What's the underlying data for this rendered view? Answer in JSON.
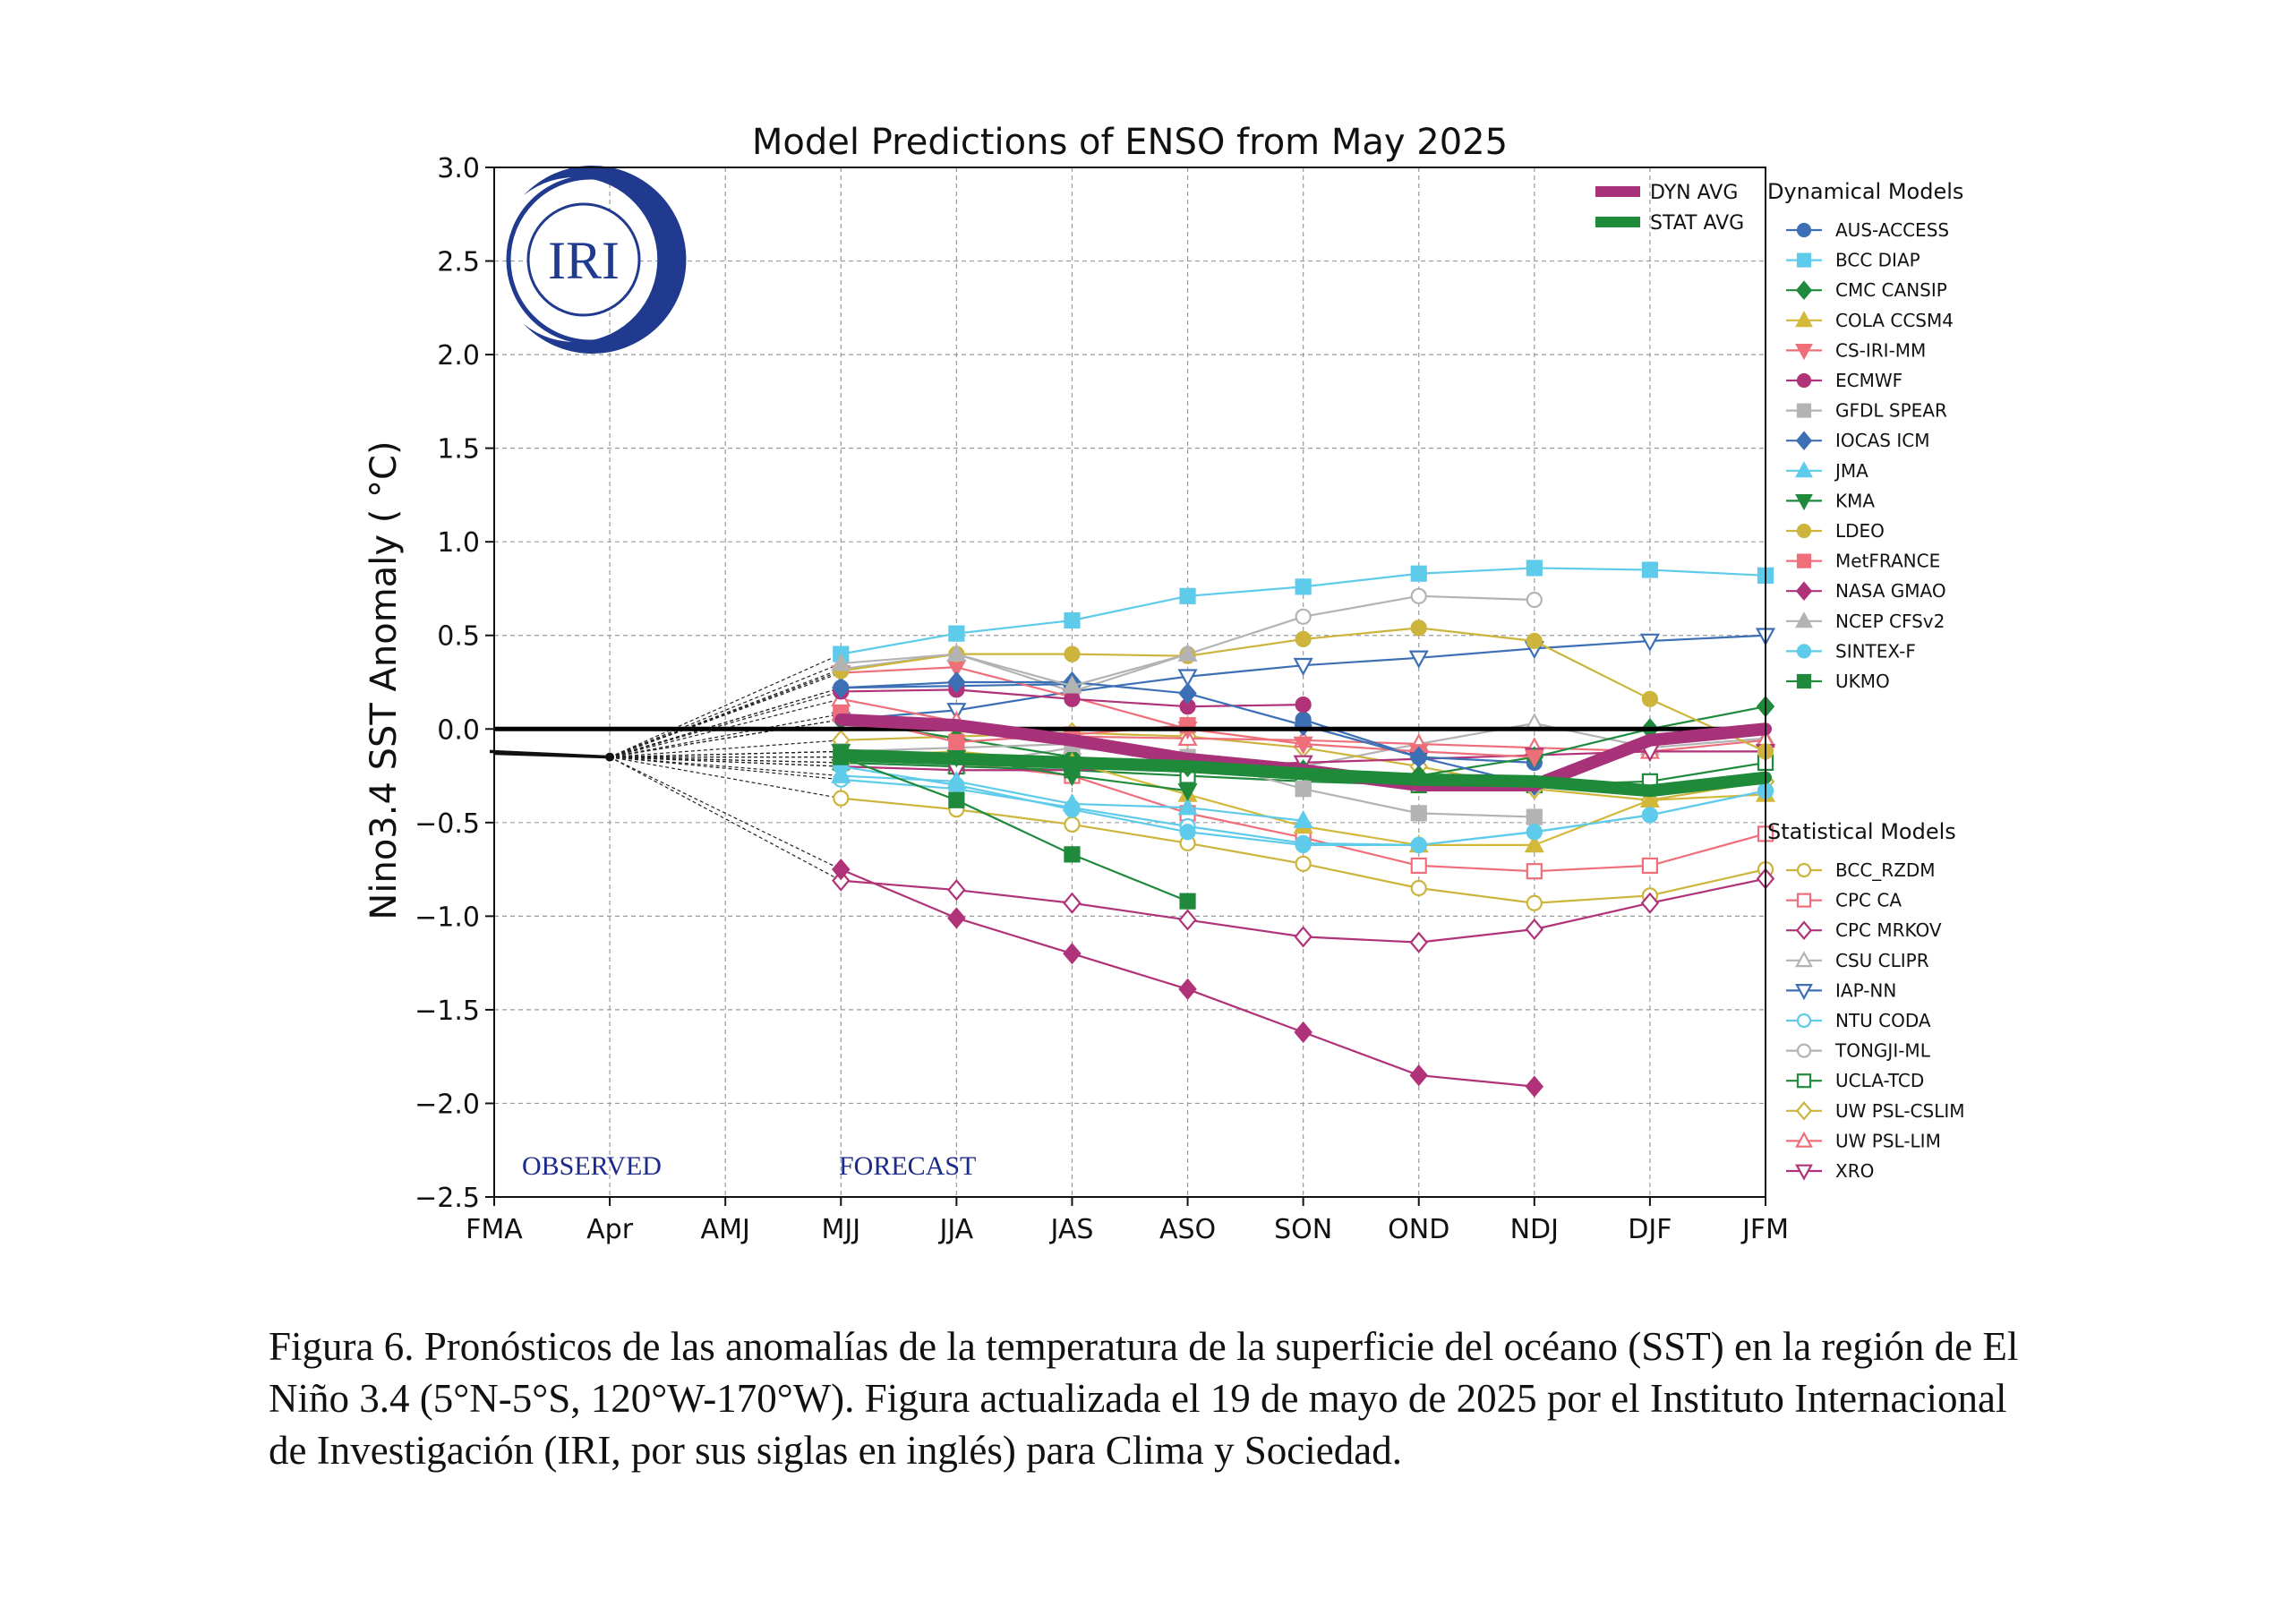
{
  "chart_data": {
    "type": "line",
    "title": "Model Predictions of ENSO from May 2025",
    "ylabel": "Nino3.4 SST Anomaly ( °C)",
    "xlabel": "",
    "categories": [
      "FMA",
      "Apr",
      "AMJ",
      "MJJ",
      "JJA",
      "JAS",
      "ASO",
      "SON",
      "OND",
      "NDJ",
      "DJF",
      "JFM"
    ],
    "ylim": [
      -2.5,
      3.0
    ],
    "yticks": [
      -2.5,
      -2.0,
      -1.5,
      -1.0,
      -0.5,
      0.0,
      0.5,
      1.0,
      1.5,
      2.0,
      2.5,
      3.0
    ],
    "ytick_labels": [
      "−2.5",
      "−2.0",
      "−1.5",
      "−1.0",
      "−0.5",
      "0.0",
      "0.5",
      "1.0",
      "1.5",
      "2.0",
      "2.5",
      "3.0"
    ],
    "grid": true,
    "legend_placement": "right, outside plot",
    "observed": {
      "x": [
        0,
        1
      ],
      "values": [
        -0.13,
        -0.15
      ]
    },
    "annotations": {
      "observed": "OBSERVED",
      "forecast": "FORECAST"
    },
    "logo_text": "IRI",
    "averages": [
      {
        "name": "DYN AVG",
        "color": "#a83279",
        "start": 3,
        "values": [
          0.05,
          0.02,
          -0.06,
          -0.16,
          -0.22,
          -0.3,
          -0.3,
          -0.06,
          0.0
        ]
      },
      {
        "name": "STAT AVG",
        "color": "#1e8a3a",
        "start": 3,
        "values": [
          -0.14,
          -0.16,
          -0.18,
          -0.2,
          -0.24,
          -0.27,
          -0.28,
          -0.33,
          -0.26
        ]
      }
    ],
    "dynamical_title": "Dynamical Models",
    "dynamical_models": [
      {
        "name": "AUS-ACCESS",
        "color": "#3d6fb5",
        "marker": "circle",
        "filled": true,
        "start": 3,
        "values": [
          0.22,
          0.23,
          0.24,
          null,
          0.05,
          -0.15,
          -0.18
        ]
      },
      {
        "name": "BCC DIAP",
        "color": "#5ecbea",
        "marker": "square",
        "filled": true,
        "start": 3,
        "values": [
          0.4,
          0.51,
          0.58,
          0.71,
          0.76,
          0.83,
          0.86,
          0.85,
          0.82
        ]
      },
      {
        "name": "CMC CANSIP",
        "color": "#1f8a3c",
        "marker": "diamond",
        "filled": true,
        "start": 3,
        "values": [
          0.05,
          -0.05,
          -0.15,
          -0.2,
          -0.22,
          -0.25,
          -0.15,
          0.0,
          0.12
        ]
      },
      {
        "name": "COLA CCSM4",
        "color": "#d4b83a",
        "marker": "triangle-up",
        "filled": true,
        "start": 3,
        "values": [
          -0.15,
          -0.12,
          -0.18,
          -0.35,
          -0.52,
          -0.62,
          -0.62,
          -0.38,
          -0.35
        ]
      },
      {
        "name": "CS-IRI-MM",
        "color": "#ee6f7a",
        "marker": "triangle-down",
        "filled": true,
        "start": 3,
        "values": [
          0.3,
          0.33,
          0.17,
          0.0,
          -0.08,
          -0.12,
          -0.15
        ]
      },
      {
        "name": "ECMWF",
        "color": "#b03279",
        "marker": "circle",
        "filled": true,
        "start": 3,
        "values": [
          0.2,
          0.21,
          0.16,
          0.12,
          0.13
        ]
      },
      {
        "name": "GFDL SPEAR",
        "color": "#b3b3b3",
        "marker": "square",
        "filled": true,
        "start": 3,
        "values": [
          -0.12,
          -0.1,
          -0.08,
          -0.15,
          -0.32,
          -0.45,
          -0.47
        ]
      },
      {
        "name": "IOCAS ICM",
        "color": "#3d6fb5",
        "marker": "diamond",
        "filled": true,
        "start": 3,
        "values": [
          0.22,
          0.25,
          0.25,
          0.19,
          0.02,
          -0.15,
          -0.3
        ]
      },
      {
        "name": "JMA",
        "color": "#5ecbea",
        "marker": "triangle-up",
        "filled": true,
        "start": 3,
        "values": [
          -0.25,
          -0.28,
          -0.4,
          -0.42,
          -0.49
        ]
      },
      {
        "name": "KMA",
        "color": "#1f8a3c",
        "marker": "triangle-down",
        "filled": true,
        "start": 3,
        "values": [
          -0.12,
          -0.15,
          -0.25,
          -0.33
        ]
      },
      {
        "name": "LDEO",
        "color": "#cdb43c",
        "marker": "circle",
        "filled": true,
        "start": 3,
        "values": [
          0.31,
          0.4,
          0.4,
          0.39,
          0.48,
          0.54,
          0.47,
          0.16,
          -0.12
        ]
      },
      {
        "name": "MetFRANCE",
        "color": "#ee6f7a",
        "marker": "square",
        "filled": true,
        "start": 3,
        "values": [
          0.08,
          -0.07,
          -0.03,
          0.02
        ]
      },
      {
        "name": "NASA GMAO",
        "color": "#b03279",
        "marker": "diamond",
        "filled": true,
        "start": 3,
        "values": [
          -0.75,
          -1.01,
          -1.2,
          -1.39,
          -1.62,
          -1.85,
          -1.91
        ]
      },
      {
        "name": "NCEP CFSv2",
        "color": "#b3b3b3",
        "marker": "triangle-up",
        "filled": true,
        "start": 3,
        "values": [
          0.35,
          0.4,
          0.23,
          0.4
        ]
      },
      {
        "name": "SINTEX-F",
        "color": "#5ecbea",
        "marker": "circle",
        "filled": true,
        "start": 3,
        "values": [
          -0.2,
          -0.3,
          -0.43,
          -0.55,
          -0.62,
          -0.62,
          -0.55,
          -0.46,
          -0.33
        ]
      },
      {
        "name": "UKMO",
        "color": "#1f8a3c",
        "marker": "square",
        "filled": true,
        "start": 3,
        "values": [
          -0.15,
          -0.38,
          -0.67,
          -0.92
        ]
      }
    ],
    "statistical_title": "Statistical Models",
    "statistical_models": [
      {
        "name": "BCC_RZDM",
        "color": "#cdb43c",
        "marker": "circle",
        "filled": false,
        "start": 3,
        "values": [
          -0.37,
          -0.43,
          -0.51,
          -0.61,
          -0.72,
          -0.85,
          -0.93,
          -0.89,
          -0.75
        ]
      },
      {
        "name": "CPC CA",
        "color": "#ee6f7a",
        "marker": "square",
        "filled": false,
        "start": 3,
        "values": [
          -0.12,
          -0.18,
          -0.25,
          -0.45,
          -0.58,
          -0.73,
          -0.76,
          -0.73,
          -0.56
        ]
      },
      {
        "name": "CPC MRKOV",
        "color": "#b03279",
        "marker": "diamond",
        "filled": false,
        "start": 3,
        "values": [
          -0.81,
          -0.86,
          -0.93,
          -1.02,
          -1.11,
          -1.14,
          -1.07,
          -0.93,
          -0.8
        ]
      },
      {
        "name": "CSU CLIPR",
        "color": "#b3b3b3",
        "marker": "triangle-up",
        "filled": false,
        "start": 3,
        "values": [
          -0.18,
          -0.2,
          -0.1,
          -0.15,
          -0.2,
          -0.08,
          0.03,
          -0.1,
          -0.05
        ]
      },
      {
        "name": "IAP-NN",
        "color": "#3d6fb5",
        "marker": "triangle-down",
        "filled": false,
        "start": 3,
        "values": [
          0.05,
          0.1,
          0.2,
          0.28,
          0.34,
          0.38,
          0.43,
          0.47,
          0.5
        ]
      },
      {
        "name": "NTU CODA",
        "color": "#5ecbea",
        "marker": "circle",
        "filled": false,
        "start": 3,
        "values": [
          -0.27,
          -0.32,
          -0.42,
          -0.52,
          -0.61,
          -0.62,
          -0.55,
          -0.46,
          -0.33
        ]
      },
      {
        "name": "TONGJI-ML",
        "color": "#b3b3b3",
        "marker": "circle",
        "filled": false,
        "start": 3,
        "values": [
          0.32,
          0.4,
          0.2,
          0.4,
          0.6,
          0.71,
          0.69
        ]
      },
      {
        "name": "UCLA-TCD",
        "color": "#1f8a3c",
        "marker": "square",
        "filled": false,
        "start": 3,
        "values": [
          -0.18,
          -0.2,
          -0.22,
          -0.25,
          -0.28,
          -0.3,
          -0.3,
          -0.28,
          -0.18
        ]
      },
      {
        "name": "UW PSL-CSLIM",
        "color": "#cdb43c",
        "marker": "diamond",
        "filled": false,
        "start": 3,
        "values": [
          -0.06,
          -0.04,
          -0.02,
          -0.04,
          -0.1,
          -0.2,
          -0.32,
          -0.38,
          -0.28
        ]
      },
      {
        "name": "UW PSL-LIM",
        "color": "#ee6f7a",
        "marker": "triangle-up",
        "filled": false,
        "start": 3,
        "values": [
          0.16,
          0.04,
          -0.04,
          -0.05,
          -0.06,
          -0.08,
          -0.1,
          -0.12,
          -0.06
        ]
      },
      {
        "name": "XRO",
        "color": "#b03279",
        "marker": "triangle-down",
        "filled": false,
        "start": 3,
        "values": [
          -0.2,
          -0.22,
          -0.22,
          -0.2,
          -0.18,
          -0.16,
          -0.14,
          -0.12,
          -0.12
        ]
      }
    ]
  },
  "caption": "Figura 6. Pronósticos de las anomalías de la temperatura de la superficie del océano (SST) en la región de El Niño 3.4 (5°N-5°S, 120°W-170°W). Figura actualizada el 19 de mayo de 2025 por el Instituto Internacional de Investigación (IRI, por sus siglas en inglés) para Clima y Sociedad."
}
